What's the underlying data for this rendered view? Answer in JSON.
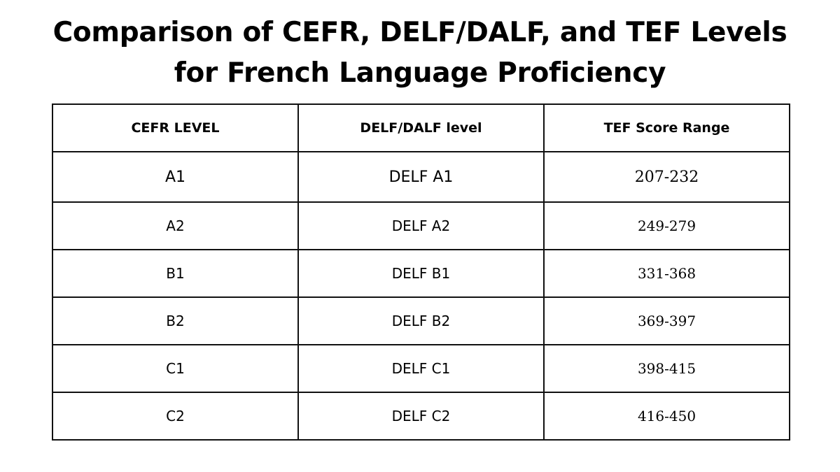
{
  "title": {
    "line1": "Comparison of CEFR, DELF/DALF, and TEF Levels",
    "line2": "for French Language Proficiency"
  },
  "table": {
    "headers": [
      "CEFR LEVEL",
      "DELF/DALF level",
      "TEF Score Range"
    ],
    "rows": [
      {
        "cefr": "A1",
        "delf": "DELF A1",
        "tef": "207-232"
      },
      {
        "cefr": "A2",
        "delf": "DELF A2",
        "tef": "249-279"
      },
      {
        "cefr": "B1",
        "delf": "DELF B1",
        "tef": "331-368"
      },
      {
        "cefr": "B2",
        "delf": "DELF B2",
        "tef": "369-397"
      },
      {
        "cefr": "C1",
        "delf": "DELF C1",
        "tef": "398-415"
      },
      {
        "cefr": "C2",
        "delf": "DELF C2",
        "tef": "416-450"
      }
    ]
  }
}
